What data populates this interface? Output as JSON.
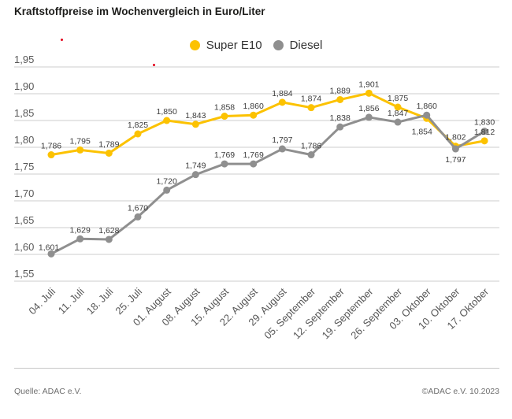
{
  "title": "Kraftstoffpreise im Wochenvergleich in Euro/Liter",
  "footer": {
    "source": "Quelle: ADAC e.V.",
    "copyright": "©ADAC e.V. 10.2023"
  },
  "chart_data": {
    "type": "line",
    "title": "Kraftstoffpreise im Wochenvergleich in Euro/Liter",
    "unit": "Euro/Liter",
    "legend_position": "top-center",
    "grid": true,
    "point_labels": true,
    "decimal_separator": ",",
    "categories": [
      "04. Juli",
      "11. Juli",
      "18. Juli",
      "25. Juli",
      "01. August",
      "08. August",
      "15. August",
      "22. August",
      "29. August",
      "05. September",
      "12. September",
      "19. September",
      "26. September",
      "03. Oktober",
      "10. Oktober",
      "17. Oktober"
    ],
    "series": [
      {
        "name": "Super E10",
        "color": "#fcc200",
        "values": [
          1.786,
          1.795,
          1.789,
          1.825,
          1.85,
          1.843,
          1.858,
          1.86,
          1.884,
          1.874,
          1.889,
          1.901,
          1.875,
          1.854,
          1.802,
          1.812
        ]
      },
      {
        "name": "Diesel",
        "color": "#8f8f8f",
        "values": [
          1.601,
          1.629,
          1.628,
          1.67,
          1.72,
          1.749,
          1.769,
          1.769,
          1.797,
          1.786,
          1.838,
          1.856,
          1.847,
          1.86,
          1.797,
          1.83
        ]
      }
    ],
    "y_axis": {
      "min": 1.55,
      "max": 1.95,
      "step": 0.05,
      "tick_labels": [
        "1,95",
        "1,90",
        "1,85",
        "1,80",
        "1,75",
        "1,70",
        "1,65",
        "1,60",
        "1,55"
      ]
    }
  }
}
